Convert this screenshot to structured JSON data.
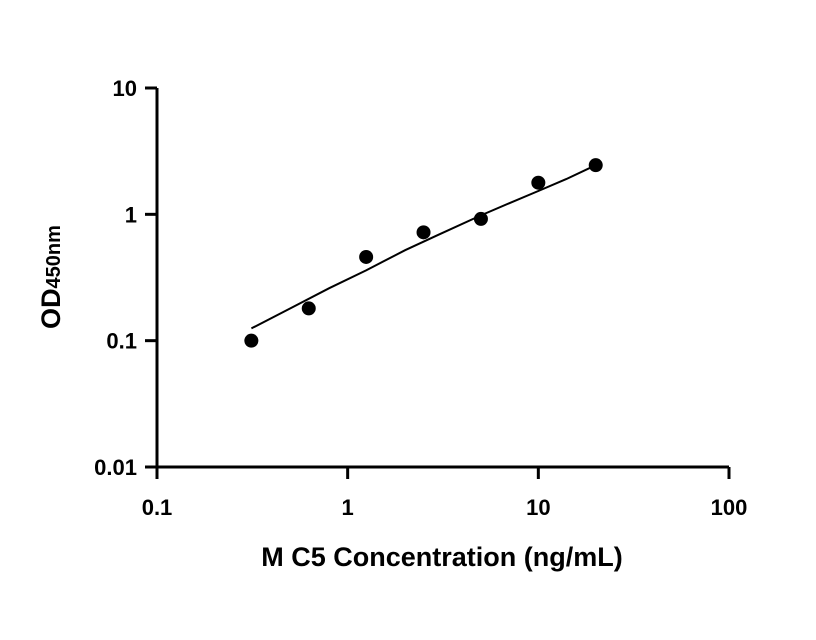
{
  "chart_data": {
    "type": "scatter",
    "title": "",
    "xlabel": "M C5 Concentration (ng/mL)",
    "ylabel_main": "OD",
    "ylabel_sub": "450nm",
    "x_scale": "log",
    "y_scale": "log",
    "xlim": [
      0.1,
      100
    ],
    "ylim": [
      0.01,
      10
    ],
    "x_ticks": [
      0.1,
      1,
      10,
      100
    ],
    "x_tick_labels": [
      "0.1",
      "1",
      "10",
      "100"
    ],
    "y_ticks": [
      0.01,
      0.1,
      1,
      10
    ],
    "y_tick_labels": [
      "0.01",
      "0.1",
      "1",
      "10"
    ],
    "grid": false,
    "legend": "none",
    "marker_color": "#000000",
    "series": [
      {
        "x": [
          0.3125,
          0.625,
          1.25,
          2.5,
          5,
          10,
          20
        ],
        "y": [
          0.1,
          0.18,
          0.46,
          0.72,
          0.92,
          1.78,
          2.45
        ]
      }
    ],
    "fit_curve": {
      "x": [
        0.3125,
        0.5,
        0.8,
        1.25,
        2,
        3,
        5,
        7,
        10,
        14,
        20
      ],
      "y": [
        0.125,
        0.18,
        0.26,
        0.36,
        0.52,
        0.69,
        0.98,
        1.22,
        1.53,
        1.9,
        2.45
      ]
    }
  }
}
